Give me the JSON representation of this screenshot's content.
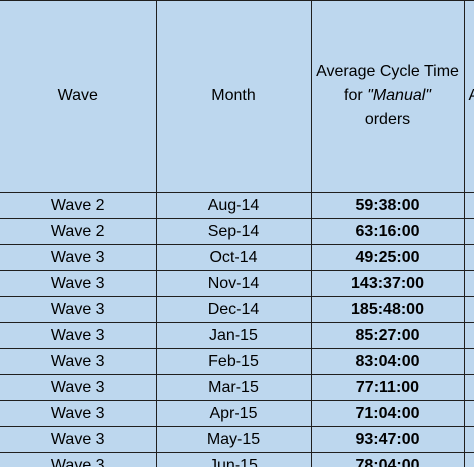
{
  "header": {
    "col1": "Wave",
    "col2": "Month",
    "col3_line1": "Average Cycle Time",
    "col3_prefix": "for ",
    "col3_italic": "\"Manual\"",
    "col3_line3": "orders",
    "col4": "A"
  },
  "rows": [
    {
      "wave": "Wave 2",
      "month": "Aug-14",
      "time": "59:38:00"
    },
    {
      "wave": "Wave 2",
      "month": "Sep-14",
      "time": "63:16:00"
    },
    {
      "wave": "Wave 3",
      "month": "Oct-14",
      "time": "49:25:00"
    },
    {
      "wave": "Wave 3",
      "month": "Nov-14",
      "time": "143:37:00"
    },
    {
      "wave": "Wave 3",
      "month": "Dec-14",
      "time": "185:48:00"
    },
    {
      "wave": "Wave 3",
      "month": "Jan-15",
      "time": "85:27:00"
    },
    {
      "wave": "Wave 3",
      "month": "Feb-15",
      "time": "83:04:00"
    },
    {
      "wave": "Wave 3",
      "month": "Mar-15",
      "time": "77:11:00"
    },
    {
      "wave": "Wave 3",
      "month": "Apr-15",
      "time": "71:04:00"
    },
    {
      "wave": "Wave 3",
      "month": "May-15",
      "time": "93:47:00"
    },
    {
      "wave": "Wave 3",
      "month": "Jun-15",
      "time": "78:04:00"
    }
  ]
}
